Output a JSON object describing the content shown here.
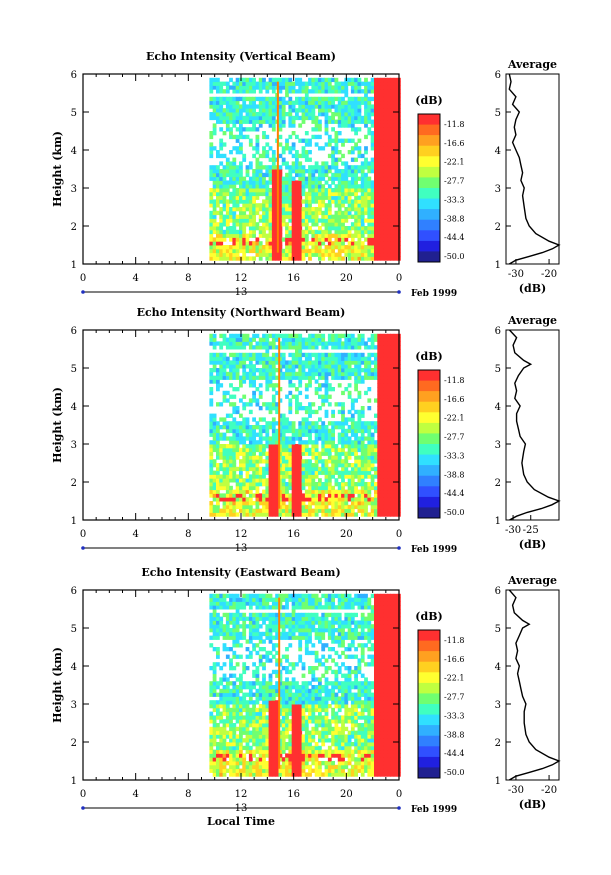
{
  "figure": {
    "xlabel": "Local Time",
    "colorbar_unit": "(dB)",
    "profile_title": "Average",
    "profile_xlabel": "(dB)",
    "date_day": "13",
    "date_month": "Feb 1999"
  },
  "chart_data": [
    {
      "type": "heatmap",
      "title": "Echo Intensity (Vertical Beam)",
      "ylabel": "Height (km)",
      "xlim": [
        0,
        24
      ],
      "ylim": [
        1,
        6
      ],
      "xticks": [
        "0",
        "4",
        "8",
        "12",
        "16",
        "20",
        "0"
      ],
      "yticks": [
        "1",
        "2",
        "3",
        "4",
        "5",
        "6"
      ],
      "colorbar_ticks": [
        "-11.8",
        "-16.6",
        "-22.1",
        "-27.7",
        "-33.3",
        "-38.8",
        "-44.4",
        "-50.0"
      ],
      "data_start_hour": 9.6,
      "gaps_km": [
        [
          3.6,
          4.7
        ]
      ],
      "top_km": 5.8,
      "strong_bands": [
        {
          "start_h": 14.2,
          "end_h": 14.9,
          "top_km": 3.5,
          "dB": -12
        },
        {
          "start_h": 15.7,
          "end_h": 16.4,
          "top_km": 3.2,
          "dB": -12
        },
        {
          "start_h": 22.1,
          "end_h": 24.0,
          "top_km": 5.8,
          "dB": -12
        }
      ],
      "thin_line_h": 14.8,
      "profile": {
        "xlim": [
          -33,
          -17
        ],
        "xticks": [
          "-30",
          "-20"
        ],
        "height_km": [
          1.0,
          1.1,
          1.2,
          1.3,
          1.4,
          1.5,
          1.6,
          1.8,
          2.0,
          2.2,
          2.5,
          2.8,
          3.0,
          3.2,
          3.4,
          3.6,
          3.8,
          4.0,
          4.2,
          4.4,
          4.6,
          4.8,
          5.0,
          5.2,
          5.4,
          5.6,
          5.8,
          6.0
        ],
        "dB": [
          -32,
          -30,
          -26,
          -22,
          -19,
          -17,
          -20,
          -24,
          -26,
          -27,
          -27.5,
          -28,
          -27.5,
          -28.5,
          -28,
          -28.5,
          -29,
          -30,
          -31,
          -30,
          -30.5,
          -30,
          -29,
          -31,
          -30,
          -32,
          -31.5,
          -32
        ]
      }
    },
    {
      "type": "heatmap",
      "title": "Echo Intensity (Northward Beam)",
      "ylabel": "Height (km)",
      "xlim": [
        0,
        24
      ],
      "ylim": [
        1,
        6
      ],
      "xticks": [
        "0",
        "4",
        "8",
        "12",
        "16",
        "20",
        "0"
      ],
      "yticks": [
        "1",
        "2",
        "3",
        "4",
        "5",
        "6"
      ],
      "colorbar_ticks": [
        "-11.8",
        "-16.6",
        "-22.1",
        "-27.7",
        "-33.3",
        "-38.8",
        "-44.4",
        "-50.0"
      ],
      "data_start_hour": 9.6,
      "gaps_km": [
        [
          3.6,
          4.7
        ]
      ],
      "top_km": 5.8,
      "strong_bands": [
        {
          "start_h": 14.1,
          "end_h": 14.8,
          "top_km": 3.0,
          "dB": -12
        },
        {
          "start_h": 15.8,
          "end_h": 16.5,
          "top_km": 3.0,
          "dB": -12
        },
        {
          "start_h": 22.3,
          "end_h": 24.0,
          "top_km": 5.8,
          "dB": -12
        }
      ],
      "thin_line_h": 14.9,
      "profile": {
        "xlim": [
          -32,
          -17
        ],
        "xticks": [
          "-30",
          "-25"
        ],
        "height_km": [
          1.0,
          1.1,
          1.2,
          1.3,
          1.4,
          1.5,
          1.6,
          1.8,
          2.0,
          2.2,
          2.5,
          2.8,
          3.0,
          3.2,
          3.4,
          3.6,
          3.8,
          4.0,
          4.2,
          4.4,
          4.6,
          4.8,
          5.0,
          5.1,
          5.2,
          5.4,
          5.6,
          5.8,
          6.0
        ],
        "dB": [
          -31,
          -29,
          -26,
          -22,
          -19,
          -17,
          -20,
          -24,
          -26,
          -27,
          -27.5,
          -27,
          -26.5,
          -28,
          -28.5,
          -29,
          -29,
          -28,
          -29.5,
          -29,
          -29.5,
          -28.5,
          -27,
          -25,
          -27,
          -29.5,
          -30,
          -29,
          -31
        ]
      }
    },
    {
      "type": "heatmap",
      "title": "Echo Intensity (Eastward Beam)",
      "ylabel": "Height (km)",
      "xlim": [
        0,
        24
      ],
      "ylim": [
        1,
        6
      ],
      "xticks": [
        "0",
        "4",
        "8",
        "12",
        "16",
        "20",
        "0"
      ],
      "yticks": [
        "1",
        "2",
        "3",
        "4",
        "5",
        "6"
      ],
      "colorbar_ticks": [
        "-11.8",
        "-16.6",
        "-22.1",
        "-27.7",
        "-33.3",
        "-38.8",
        "-44.4",
        "-50.0"
      ],
      "data_start_hour": 9.6,
      "gaps_km": [
        [
          3.6,
          4.7
        ]
      ],
      "top_km": 5.8,
      "strong_bands": [
        {
          "start_h": 14.0,
          "end_h": 14.7,
          "top_km": 3.1,
          "dB": -12
        },
        {
          "start_h": 15.8,
          "end_h": 16.5,
          "top_km": 3.0,
          "dB": -12
        },
        {
          "start_h": 22.0,
          "end_h": 24.0,
          "top_km": 5.8,
          "dB": -12
        }
      ],
      "thin_line_h": 14.9,
      "profile": {
        "xlim": [
          -33,
          -17
        ],
        "xticks": [
          "-30",
          "-20"
        ],
        "height_km": [
          1.0,
          1.1,
          1.2,
          1.3,
          1.4,
          1.5,
          1.6,
          1.8,
          2.0,
          2.2,
          2.5,
          2.8,
          3.0,
          3.2,
          3.4,
          3.6,
          3.8,
          4.0,
          4.2,
          4.4,
          4.6,
          4.8,
          5.0,
          5.1,
          5.2,
          5.4,
          5.6,
          5.8,
          6.0
        ],
        "dB": [
          -32,
          -30,
          -26,
          -22,
          -19,
          -17,
          -20,
          -24,
          -26,
          -27,
          -27.5,
          -27.5,
          -27,
          -28,
          -28.5,
          -29,
          -29.5,
          -29,
          -30,
          -29.5,
          -30,
          -29,
          -28,
          -26,
          -28,
          -30.5,
          -31,
          -30,
          -32
        ]
      }
    }
  ]
}
